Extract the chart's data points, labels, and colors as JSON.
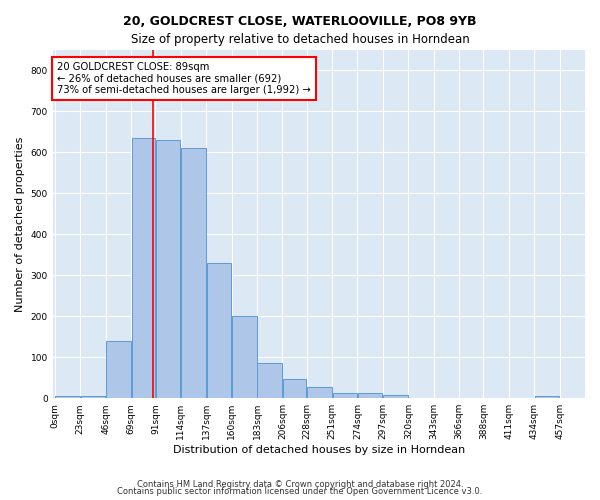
{
  "title1": "20, GOLDCREST CLOSE, WATERLOOVILLE, PO8 9YB",
  "title2": "Size of property relative to detached houses in Horndean",
  "xlabel": "Distribution of detached houses by size in Horndean",
  "ylabel": "Number of detached properties",
  "bar_color": "#aec6e8",
  "bar_edge_color": "#5b9bd5",
  "property_line_x": 89,
  "property_line_color": "red",
  "annotation_line1": "20 GOLDCREST CLOSE: 89sqm",
  "annotation_line2": "← 26% of detached houses are smaller (692)",
  "annotation_line3": "73% of semi-detached houses are larger (1,992) →",
  "bin_edges": [
    0,
    23,
    46,
    69,
    91,
    114,
    137,
    160,
    183,
    206,
    228,
    251,
    274,
    297,
    320,
    343,
    366,
    388,
    411,
    434,
    457,
    480
  ],
  "bin_labels": [
    "0sqm",
    "23sqm",
    "46sqm",
    "69sqm",
    "91sqm",
    "114sqm",
    "137sqm",
    "160sqm",
    "183sqm",
    "206sqm",
    "228sqm",
    "251sqm",
    "274sqm",
    "297sqm",
    "320sqm",
    "343sqm",
    "366sqm",
    "388sqm",
    "411sqm",
    "434sqm",
    "457sqm"
  ],
  "values": [
    5,
    5,
    140,
    635,
    630,
    610,
    330,
    200,
    85,
    48,
    27,
    12,
    12,
    8,
    0,
    0,
    0,
    0,
    0,
    5,
    0
  ],
  "ylim": [
    0,
    850
  ],
  "yticks": [
    0,
    100,
    200,
    300,
    400,
    500,
    600,
    700,
    800
  ],
  "footer1": "Contains HM Land Registry data © Crown copyright and database right 2024.",
  "footer2": "Contains public sector information licensed under the Open Government Licence v3.0.",
  "plot_bg_color": "#dce9f5"
}
